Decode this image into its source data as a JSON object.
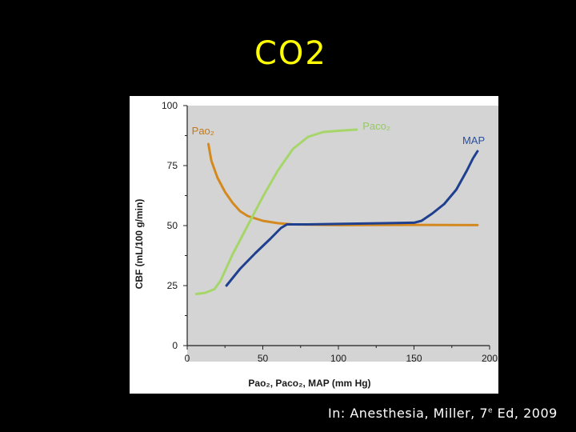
{
  "slide": {
    "title": "CO2",
    "citation_prefix": "In: Anesthesia, Miller, 7",
    "citation_sup": "e",
    "citation_suffix": " Ed, 2009"
  },
  "colors": {
    "page_bg": "#000000",
    "title": "#ffff00",
    "plot_bg": "#d4d4d4",
    "pao2": "#d4891f",
    "paco2": "#a6d66a",
    "map": "#1f3f8f"
  },
  "chart_data": {
    "type": "line",
    "ylabel": "CBF (mL/100 g/min)",
    "xlabel": "Pao₂, Paco₂, MAP (mm Hg)",
    "xlim": [
      0,
      200
    ],
    "ylim": [
      0,
      100
    ],
    "xticks": [
      0,
      50,
      100,
      150,
      200
    ],
    "yticks": [
      0,
      25,
      50,
      75,
      100
    ],
    "grid": false,
    "series": [
      {
        "name": "Pao₂",
        "color": "#d4891f",
        "label_at": [
          3,
          88
        ],
        "label_color": "#c2781a",
        "points": [
          [
            14,
            84
          ],
          [
            16,
            77
          ],
          [
            20,
            70
          ],
          [
            25,
            64
          ],
          [
            30,
            59.5
          ],
          [
            35,
            56
          ],
          [
            40,
            54
          ],
          [
            50,
            52
          ],
          [
            60,
            51
          ],
          [
            70,
            50.5
          ],
          [
            100,
            50.2
          ],
          [
            150,
            50.3
          ],
          [
            192,
            50.2
          ]
        ]
      },
      {
        "name": "Paco₂",
        "color": "#a6d66a",
        "label_at": [
          116,
          90
        ],
        "label_color": "#95c962",
        "points": [
          [
            6,
            21.5
          ],
          [
            12,
            22
          ],
          [
            18,
            23.5
          ],
          [
            22,
            27
          ],
          [
            30,
            38
          ],
          [
            40,
            50
          ],
          [
            50,
            62
          ],
          [
            60,
            73
          ],
          [
            70,
            82
          ],
          [
            80,
            87
          ],
          [
            90,
            89
          ],
          [
            100,
            89.5
          ],
          [
            112,
            90
          ]
        ]
      },
      {
        "name": "MAP",
        "color": "#1f3f8f",
        "label_at": [
          182,
          84
        ],
        "label_color": "#2a4fa0",
        "points": [
          [
            26,
            25
          ],
          [
            35,
            32
          ],
          [
            45,
            38.5
          ],
          [
            55,
            44.5
          ],
          [
            62,
            49
          ],
          [
            66,
            50.5
          ],
          [
            80,
            50.5
          ],
          [
            100,
            50.7
          ],
          [
            130,
            51
          ],
          [
            150,
            51.2
          ],
          [
            155,
            52
          ],
          [
            162,
            55
          ],
          [
            170,
            59
          ],
          [
            178,
            65
          ],
          [
            185,
            73
          ],
          [
            189,
            78
          ],
          [
            192,
            81
          ]
        ]
      }
    ]
  }
}
